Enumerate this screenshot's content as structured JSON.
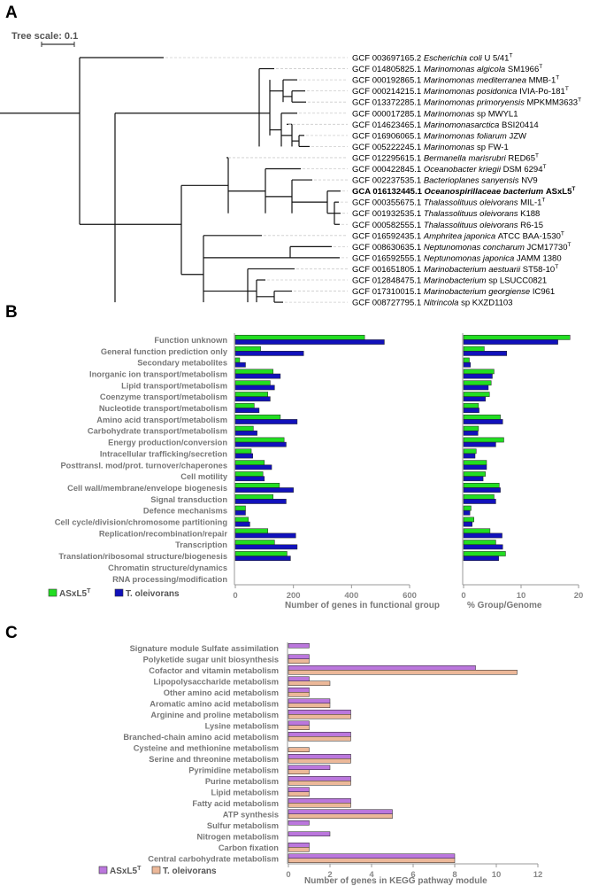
{
  "colors": {
    "green": "#22dd22",
    "blue": "#1111bb",
    "purple": "#bb77dd",
    "peach": "#ecb899",
    "axis": "#999999",
    "label": "#777777",
    "leader": "#cccccc"
  },
  "panel_a": {
    "letter": "A",
    "scale_label": "Tree scale: 0.1",
    "taxa": [
      {
        "acc": "GCF 003697165.2",
        "name": "Escherichia coli",
        "strain": "U 5/41",
        "type": true
      },
      {
        "acc": "GCF 014805825.1",
        "name": "Marinomonas algicola",
        "strain": "SM1966",
        "type": true
      },
      {
        "acc": "GCF 000192865.1",
        "name": "Marinomonas mediterranea",
        "strain": "MMB-1",
        "type": true
      },
      {
        "acc": "GCF 000214215.1",
        "name": "Marinomonas posidonica",
        "strain": "IVIA-Po-181",
        "type": true
      },
      {
        "acc": "GCF 013372285.1",
        "name": "Marinomonas primoryensis",
        "strain": "MPKMM3633",
        "type": true
      },
      {
        "acc": "GCF 000017285.1",
        "name": "Marinomonas",
        "strain": "sp MWYL1",
        "type": false
      },
      {
        "acc": "GCF 014623465.1",
        "name": "Marinomonasarctica",
        "strain": "BSI20414",
        "type": false
      },
      {
        "acc": "GCF 016906065.1",
        "name": "Marinomonas foliarum",
        "strain": "JZW",
        "type": false
      },
      {
        "acc": "GCF 005222245.1",
        "name": "Marinomonas",
        "strain": "sp FW-1",
        "type": false
      },
      {
        "acc": "GCF 012295615.1",
        "name": "Bermanella marisrubri",
        "strain": "RED65",
        "type": true
      },
      {
        "acc": "GCF 000422845.1",
        "name": "Oceanobacter kriegii",
        "strain": "DSM 6294",
        "type": true
      },
      {
        "acc": "GCF 002237535.1",
        "name": "Bacterioplanes sanyensis",
        "strain": "NV9",
        "type": false
      },
      {
        "acc": "GCA 016132445.1",
        "name": "Oceanospirillaceae bacterium",
        "strain": "ASxL5",
        "type": true,
        "bold": true
      },
      {
        "acc": "GCF 000355675.1",
        "name": "Thalassolituus oleivorans",
        "strain": "MIL-1",
        "type": true
      },
      {
        "acc": "GCF 001932535.1",
        "name": "Thalassolituus oleivorans",
        "strain": "K188",
        "type": false
      },
      {
        "acc": "GCF 000582555.1",
        "name": "Thalassolituus oleivorans",
        "strain": "R6-15",
        "type": false
      },
      {
        "acc": "GCF 016592435.1",
        "name": "Amphritea japonica",
        "strain": "ATCC BAA-1530",
        "type": true
      },
      {
        "acc": "GCF 008630635.1",
        "name": "Neptunomonas concharum",
        "strain": "JCM17730",
        "type": true
      },
      {
        "acc": "GCF 016592555.1",
        "name": "Neptunomonas japonica",
        "strain": "JAMM 1380",
        "type": false
      },
      {
        "acc": "GCF 001651805.1",
        "name": "Marinobacterium aestuarii",
        "strain": "ST58-10",
        "type": true
      },
      {
        "acc": "GCF 012848475.1",
        "name": "Marinobacterium",
        "strain": "sp LSUCC0821",
        "type": false
      },
      {
        "acc": "GCF 017310015.1",
        "name": "Marinobacterium georgiense",
        "strain": "IC961",
        "type": false
      },
      {
        "acc": "GCF 008727795.1",
        "name": "Nitrincola",
        "strain": "sp KXZD1103",
        "type": false
      }
    ]
  },
  "chart_data": [
    {
      "panel": "B",
      "type": "bar",
      "orientation": "horizontal",
      "categories": [
        "Function unknown",
        "General function prediction only",
        "Secondary metabolites",
        "Inorganic ion transport/metabolism",
        "Lipid transport/metabolism",
        "Coenzyme transport/metabolism",
        "Nucleotide transport/metabolism",
        "Amino acid transport/metabolism",
        "Carbohydrate transport/metabolism",
        "Energy production/conversion",
        "Intracellular trafficking/secretion",
        "Posttransl. mod/prot. turnover/chaperones",
        "Cell motility",
        "Cell wall/membrane/envelope biogenesis",
        "Signal transduction",
        "Defence mechanisms",
        "Cell cycle/division/chromosome partitioning",
        "Replication/recombination/repair",
        "Transcription",
        "Translation/ribosomal structure/biogenesis",
        "Chromatin structure/dynamics",
        "RNA processing/modification"
      ],
      "series": [
        {
          "name": "ASxL5",
          "values": [
            445,
            87,
            15,
            130,
            120,
            112,
            65,
            155,
            62,
            168,
            55,
            100,
            95,
            152,
            130,
            35,
            45,
            112,
            135,
            178,
            0,
            0
          ]
        },
        {
          "name": "T. oleivorans",
          "values": [
            513,
            235,
            35,
            155,
            135,
            120,
            82,
            213,
            75,
            175,
            60,
            125,
            100,
            200,
            175,
            35,
            50,
            208,
            213,
            190,
            0,
            0
          ]
        }
      ],
      "xlabel": "Number of genes in functional group",
      "xlim": [
        0,
        600
      ],
      "xticks": [
        "0",
        "200",
        "400",
        "600"
      ]
    },
    {
      "panel": "B",
      "type": "bar",
      "orientation": "horizontal",
      "categories": [
        "Function unknown",
        "General function prediction only",
        "Secondary metabolites",
        "Inorganic ion transport/metabolism",
        "Lipid transport/metabolism",
        "Coenzyme transport/metabolism",
        "Nucleotide transport/metabolism",
        "Amino acid transport/metabolism",
        "Carbohydrate transport/metabolism",
        "Energy production/conversion",
        "Intracellular trafficking/secretion",
        "Posttransl. mod/prot. turnover/chaperones",
        "Cell motility",
        "Cell wall/membrane/envelope biogenesis",
        "Signal transduction",
        "Defence mechanisms",
        "Cell cycle/division/chromosome partitioning",
        "Replication/recombination/repair",
        "Transcription",
        "Translation/ribosomal structure/biogenesis",
        "Chromatin structure/dynamics",
        "RNA processing/modification"
      ],
      "series": [
        {
          "name": "ASxL5",
          "values": [
            18.5,
            3.6,
            1.0,
            5.3,
            4.8,
            4.5,
            2.6,
            6.4,
            2.6,
            7.0,
            2.2,
            4.0,
            3.8,
            6.2,
            5.3,
            1.3,
            1.8,
            4.6,
            5.6,
            7.3,
            0,
            0
          ]
        },
        {
          "name": "T. oleivorans",
          "values": [
            16.4,
            7.5,
            1.2,
            5.0,
            4.3,
            3.8,
            2.7,
            6.8,
            2.5,
            5.6,
            2.0,
            4.0,
            3.4,
            6.4,
            5.6,
            1.1,
            1.5,
            6.7,
            6.8,
            6.1,
            0,
            0
          ]
        }
      ],
      "xlabel": "% Group/Genome",
      "xlim": [
        0,
        20
      ],
      "xticks": [
        "0",
        "10",
        "20"
      ]
    },
    {
      "panel": "C",
      "type": "bar",
      "orientation": "horizontal",
      "categories": [
        "Signature module Sulfate assimilation",
        "Polyketide sugar unit biosynthesis",
        "Cofactor and vitamin metabolism",
        "Lipopolysaccharide metabolism",
        "Other amino acid metabolism",
        "Aromatic amino acid metabolism",
        "Arginine and proline metabolism",
        "Lysine metabolism",
        "Branched-chain amino acid metabolism",
        "Cysteine and methionine metabolism",
        "Serine and threonine metabolism",
        "Pyrimidine metabolism",
        "Purine metabolism",
        "Lipid metabolism",
        "Fatty acid metabolism",
        "ATP synthesis",
        "Sulfur metabolism",
        "Nitrogen metabolism",
        "Carbon fixation",
        "Central carbohydrate metabolism"
      ],
      "series": [
        {
          "name": "ASxL5",
          "values": [
            1,
            1,
            9,
            1,
            1,
            2,
            3,
            1,
            3,
            0,
            3,
            2,
            3,
            1,
            3,
            5,
            1,
            2,
            1,
            8
          ]
        },
        {
          "name": "T. oleivorans",
          "values": [
            0,
            1,
            11,
            2,
            1,
            2,
            3,
            1,
            3,
            1,
            3,
            1,
            3,
            1,
            3,
            5,
            0,
            0,
            1,
            8
          ]
        }
      ],
      "xlabel": "Number of genes in KEGG pathway module",
      "xlim": [
        0,
        12
      ],
      "xticks": [
        "0",
        "2",
        "4",
        "6",
        "8",
        "10",
        "12"
      ]
    }
  ],
  "panel_b": {
    "letter": "B",
    "legend": [
      {
        "label": "ASxL5",
        "sup": "T",
        "color": "#22dd22"
      },
      {
        "label": "T. oleivorans",
        "sup": "",
        "color": "#1111bb"
      }
    ]
  },
  "panel_c": {
    "letter": "C",
    "legend": [
      {
        "label": "ASxL5",
        "sup": "T",
        "color": "#bb77dd"
      },
      {
        "label": "T. oleivorans",
        "sup": "",
        "color": "#ecb899"
      }
    ]
  }
}
